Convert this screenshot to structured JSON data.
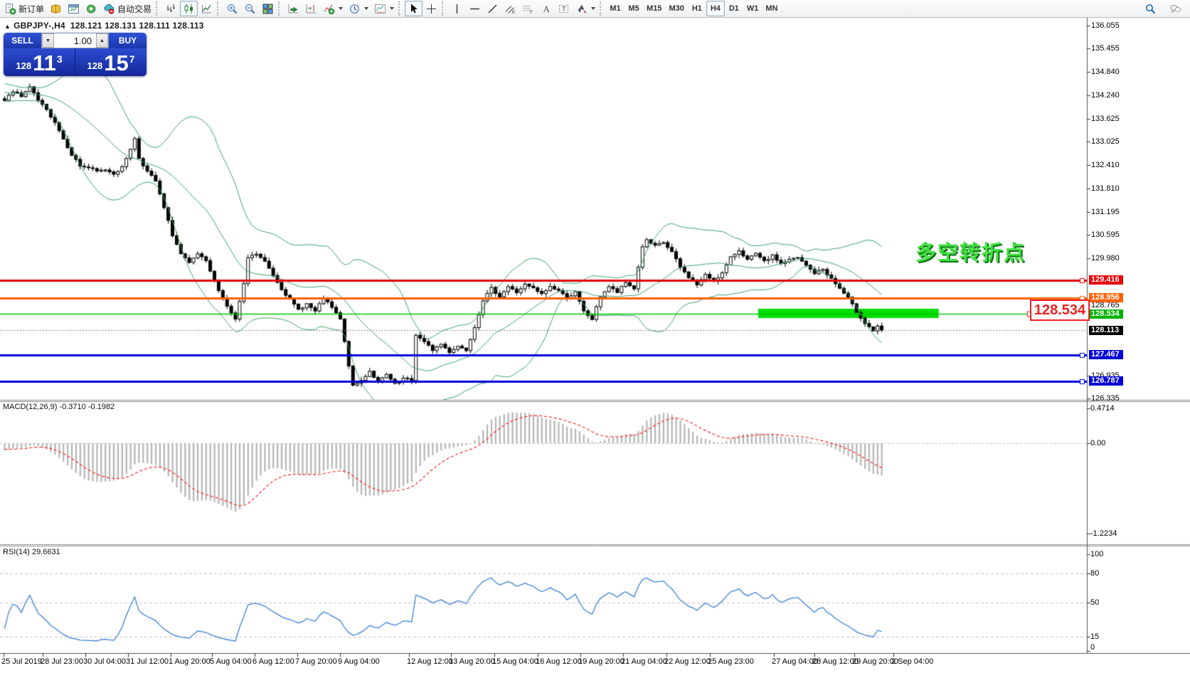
{
  "toolbar": {
    "buttons": [
      {
        "name": "new-order",
        "label": "新订单"
      },
      {
        "name": "history-center"
      },
      {
        "name": "chart-window"
      },
      {
        "name": "alerts"
      },
      {
        "name": "autotrading",
        "label": "自动交易"
      },
      {
        "sep": true
      },
      {
        "name": "bar-chart"
      },
      {
        "name": "candlestick",
        "active": true
      },
      {
        "name": "line-chart"
      },
      {
        "sep": true
      },
      {
        "name": "zoom-in"
      },
      {
        "name": "zoom-out"
      },
      {
        "name": "tile-windows"
      },
      {
        "sep": true
      },
      {
        "name": "auto-scroll"
      },
      {
        "name": "chart-shift"
      },
      {
        "name": "indicators",
        "caret": true
      },
      {
        "name": "periods",
        "caret": true
      },
      {
        "name": "templates",
        "caret": true
      },
      {
        "sep": true
      },
      {
        "name": "cursor",
        "active": true
      },
      {
        "name": "crosshair"
      },
      {
        "sep": true
      },
      {
        "name": "vertical-line"
      },
      {
        "name": "horizontal-line"
      },
      {
        "name": "trendline"
      },
      {
        "name": "equidistant-channel"
      },
      {
        "name": "fibonacci"
      },
      {
        "name": "text"
      },
      {
        "name": "text-label"
      },
      {
        "name": "arrows",
        "caret": true
      },
      {
        "sep": true
      }
    ],
    "timeframes": {
      "items": [
        "M1",
        "M5",
        "M15",
        "M30",
        "H1",
        "H4",
        "D1",
        "W1",
        "MN"
      ],
      "active": "H4"
    },
    "right_icons": [
      {
        "name": "search"
      },
      {
        "name": "chat"
      }
    ]
  },
  "symbol_info": {
    "collapse_arrow": "▲",
    "title": "GBPJPY-,H4",
    "ohlc": "128.121 128.131 128.111 128.113"
  },
  "trade_panel": {
    "sell_label": "SELL",
    "buy_label": "BUY",
    "volume": "1.00",
    "sell_price": {
      "small": "128",
      "big": "11",
      "sup": "3"
    },
    "buy_price": {
      "small": "128",
      "big": "15",
      "sup": "7"
    },
    "stepper_down": "▼",
    "stepper_up": "▲"
  },
  "price_axis": {
    "ticks": [
      "136.055",
      "135.455",
      "134.840",
      "134.240",
      "133.625",
      "133.025",
      "132.410",
      "131.810",
      "131.195",
      "130.595",
      "129.980",
      "128.765",
      "126.935",
      "126.335"
    ],
    "tags": [
      {
        "text": "129.416",
        "color": "#e60000"
      },
      {
        "text": "128.956",
        "color": "#ff6000"
      },
      {
        "text": "128.534",
        "color": "#00b400"
      },
      {
        "text": "128.113",
        "color": "#000000"
      },
      {
        "text": "127.467",
        "color": "#0000d8"
      },
      {
        "text": "126.787",
        "color": "#0000d8"
      }
    ]
  },
  "macd": {
    "label": "MACD(12,26,9) -0.3710 -0.1982",
    "axis": [
      {
        "text": "0.4714",
        "v": 0.4714
      },
      {
        "text": "0.00",
        "v": 0
      },
      {
        "text": "-1.2234",
        "v": -1.2234
      }
    ]
  },
  "rsi": {
    "label": "RSI(14) 29.6631",
    "axis": [
      {
        "text": "100",
        "v": 100
      },
      {
        "text": "80",
        "v": 80
      },
      {
        "text": "50",
        "v": 50
      },
      {
        "text": "15",
        "v": 15
      },
      {
        "text": "0",
        "v": 0
      }
    ]
  },
  "time_axis": {
    "labels": [
      "25 Jul 2019",
      "28 Jul 23:00",
      "30 Jul 04:00",
      "31 Jul 12:00",
      "1 Aug 20:00",
      "5 Aug 04:00",
      "6 Aug 12:00",
      "7 Aug 20:00",
      "9 Aug 04:00",
      "12 Aug 12:00",
      "13 Aug 20:00",
      "15 Aug 04:00",
      "16 Aug 12:00",
      "19 Aug 20:00",
      "21 Aug 04:00",
      "22 Aug 12:00",
      "25 Aug 23:00",
      "27 Aug 04:00",
      "28 Aug 12:00",
      "29 Aug 20:00",
      "2 Sep 04:00"
    ]
  },
  "annotations": {
    "turning_point": "多空转折点",
    "price_callout": "128.534"
  },
  "chart_data": [
    {
      "type": "candlestick",
      "symbol": "GBPJPY-",
      "timeframe": "H4",
      "ylim": [
        126.335,
        136.055
      ],
      "bars": 210,
      "x_start_label": "25 Jul 2019",
      "x_end_label": "2 Sep 04:00",
      "last_price": 128.113,
      "close_keyframes": [
        [
          0,
          134.1
        ],
        [
          2,
          134.35
        ],
        [
          4,
          134.2
        ],
        [
          6,
          134.45
        ],
        [
          8,
          134.1
        ],
        [
          10,
          133.85
        ],
        [
          12,
          133.55
        ],
        [
          14,
          133.1
        ],
        [
          16,
          132.7
        ],
        [
          18,
          132.4
        ],
        [
          20,
          132.35
        ],
        [
          22,
          132.25
        ],
        [
          24,
          132.3
        ],
        [
          26,
          132.2
        ],
        [
          28,
          132.35
        ],
        [
          30,
          132.85
        ],
        [
          31,
          133.1
        ],
        [
          32,
          132.6
        ],
        [
          34,
          132.25
        ],
        [
          36,
          132.0
        ],
        [
          38,
          131.3
        ],
        [
          40,
          130.6
        ],
        [
          42,
          130.1
        ],
        [
          44,
          129.85
        ],
        [
          46,
          130.1
        ],
        [
          48,
          129.9
        ],
        [
          50,
          129.4
        ],
        [
          52,
          128.95
        ],
        [
          54,
          128.55
        ],
        [
          55,
          128.4
        ],
        [
          57,
          129.3
        ],
        [
          58,
          130.0
        ],
        [
          60,
          130.1
        ],
        [
          62,
          129.9
        ],
        [
          64,
          129.55
        ],
        [
          66,
          129.2
        ],
        [
          68,
          128.9
        ],
        [
          70,
          128.65
        ],
        [
          72,
          128.8
        ],
        [
          74,
          128.6
        ],
        [
          76,
          128.95
        ],
        [
          78,
          128.7
        ],
        [
          80,
          128.4
        ],
        [
          82,
          127.2
        ],
        [
          83,
          126.65
        ],
        [
          85,
          126.8
        ],
        [
          87,
          127.05
        ],
        [
          89,
          126.75
        ],
        [
          91,
          126.95
        ],
        [
          93,
          126.7
        ],
        [
          95,
          126.85
        ],
        [
          97,
          126.8
        ],
        [
          98,
          128.0
        ],
        [
          100,
          127.8
        ],
        [
          102,
          127.6
        ],
        [
          104,
          127.75
        ],
        [
          106,
          127.55
        ],
        [
          108,
          127.7
        ],
        [
          110,
          127.6
        ],
        [
          112,
          128.2
        ],
        [
          114,
          128.9
        ],
        [
          116,
          129.2
        ],
        [
          118,
          129.0
        ],
        [
          120,
          129.25
        ],
        [
          122,
          129.1
        ],
        [
          124,
          129.3
        ],
        [
          126,
          129.2
        ],
        [
          128,
          129.05
        ],
        [
          130,
          129.25
        ],
        [
          132,
          129.15
        ],
        [
          134,
          128.95
        ],
        [
          136,
          129.1
        ],
        [
          138,
          128.6
        ],
        [
          140,
          128.4
        ],
        [
          142,
          129.0
        ],
        [
          144,
          129.25
        ],
        [
          146,
          129.1
        ],
        [
          148,
          129.35
        ],
        [
          150,
          129.2
        ],
        [
          152,
          130.3
        ],
        [
          153,
          130.45
        ],
        [
          155,
          130.3
        ],
        [
          157,
          130.4
        ],
        [
          159,
          130.15
        ],
        [
          161,
          129.75
        ],
        [
          163,
          129.5
        ],
        [
          165,
          129.3
        ],
        [
          167,
          129.55
        ],
        [
          169,
          129.4
        ],
        [
          171,
          129.6
        ],
        [
          173,
          130.0
        ],
        [
          175,
          130.2
        ],
        [
          177,
          129.95
        ],
        [
          179,
          130.1
        ],
        [
          181,
          129.9
        ],
        [
          183,
          130.05
        ],
        [
          185,
          129.85
        ],
        [
          187,
          129.95
        ],
        [
          189,
          130.0
        ],
        [
          191,
          129.8
        ],
        [
          193,
          129.6
        ],
        [
          195,
          129.7
        ],
        [
          197,
          129.45
        ],
        [
          199,
          129.2
        ],
        [
          201,
          128.95
        ],
        [
          203,
          128.6
        ],
        [
          205,
          128.3
        ],
        [
          207,
          128.1
        ],
        [
          208,
          128.2
        ],
        [
          209,
          128.113
        ]
      ],
      "bollinger": {
        "period": 20,
        "deviation": 2,
        "color": "#3da36b"
      },
      "hlines": [
        {
          "price": 129.416,
          "color": "#e60000",
          "width": 3
        },
        {
          "price": 128.956,
          "color": "#ff6000",
          "width": 3
        },
        {
          "price": 128.534,
          "color": "#00c800",
          "width": 1.4
        },
        {
          "price": 128.113,
          "color": "#888888",
          "width": 1,
          "style": "dotted",
          "role": "last-price"
        },
        {
          "price": 127.467,
          "color": "#0000d8",
          "width": 3
        },
        {
          "price": 126.787,
          "color": "#0000d8",
          "width": 3
        }
      ],
      "zone": {
        "bar_start": 180,
        "bar_end": 223,
        "price_top": 128.672,
        "price_bottom": 128.43,
        "color": "#00dd00"
      }
    },
    {
      "type": "macd",
      "params": {
        "fast": 12,
        "slow": 26,
        "signal": 9
      },
      "last_macd": -0.371,
      "last_signal": -0.1982,
      "axis_range_shown": [
        -1.2234,
        0.4714
      ],
      "histogram_color": "#b5b5b5",
      "signal_color": "#ff2222",
      "note": "histogram (MACD line) and signal derived from candle closes"
    },
    {
      "type": "rsi",
      "period": 14,
      "last": 29.6631,
      "levels": [
        15,
        50,
        80
      ],
      "range": [
        0,
        100
      ],
      "color": "#3b82d8"
    }
  ]
}
